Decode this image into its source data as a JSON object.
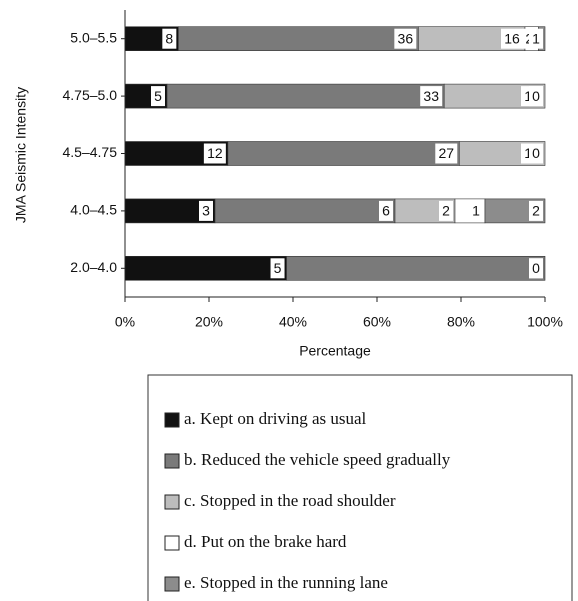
{
  "chart_data": {
    "type": "bar",
    "orientation": "horizontal",
    "stacking": "percent",
    "x_label": "Percentage",
    "y_label": "JMA Seismic Intensity",
    "categories": [
      "5.0–5.5",
      "4.75–5.0",
      "4.5–4.75",
      "4.0–4.5",
      "2.0–4.0"
    ],
    "series": [
      {
        "name": "a. Kept on driving as usual",
        "color": "#111111",
        "values": [
          8,
          5,
          12,
          3,
          5
        ]
      },
      {
        "name": "b. Reduced the vehicle speed gradually",
        "color": "#7a7a7a",
        "values": [
          36,
          33,
          27,
          6,
          8
        ]
      },
      {
        "name": "c. Stopped in the road shoulder",
        "color": "#bdbdbd",
        "values": [
          16,
          12,
          10,
          2,
          0
        ]
      },
      {
        "name": "d. Put on the brake hard",
        "color": "#ffffff",
        "values": [
          2,
          0,
          0,
          1,
          null
        ]
      },
      {
        "name": "e. Stopped in the running lane",
        "color": "#8c8c8c",
        "values": [
          1,
          null,
          null,
          2,
          null
        ]
      }
    ],
    "xlim": [
      0,
      100
    ],
    "xticks": [
      {
        "value": 0,
        "label": "0%"
      },
      {
        "value": 20,
        "label": "20%"
      },
      {
        "value": 40,
        "label": "40%"
      },
      {
        "value": 60,
        "label": "60%"
      },
      {
        "value": 80,
        "label": "80%"
      },
      {
        "value": 100,
        "label": "100%"
      }
    ]
  }
}
